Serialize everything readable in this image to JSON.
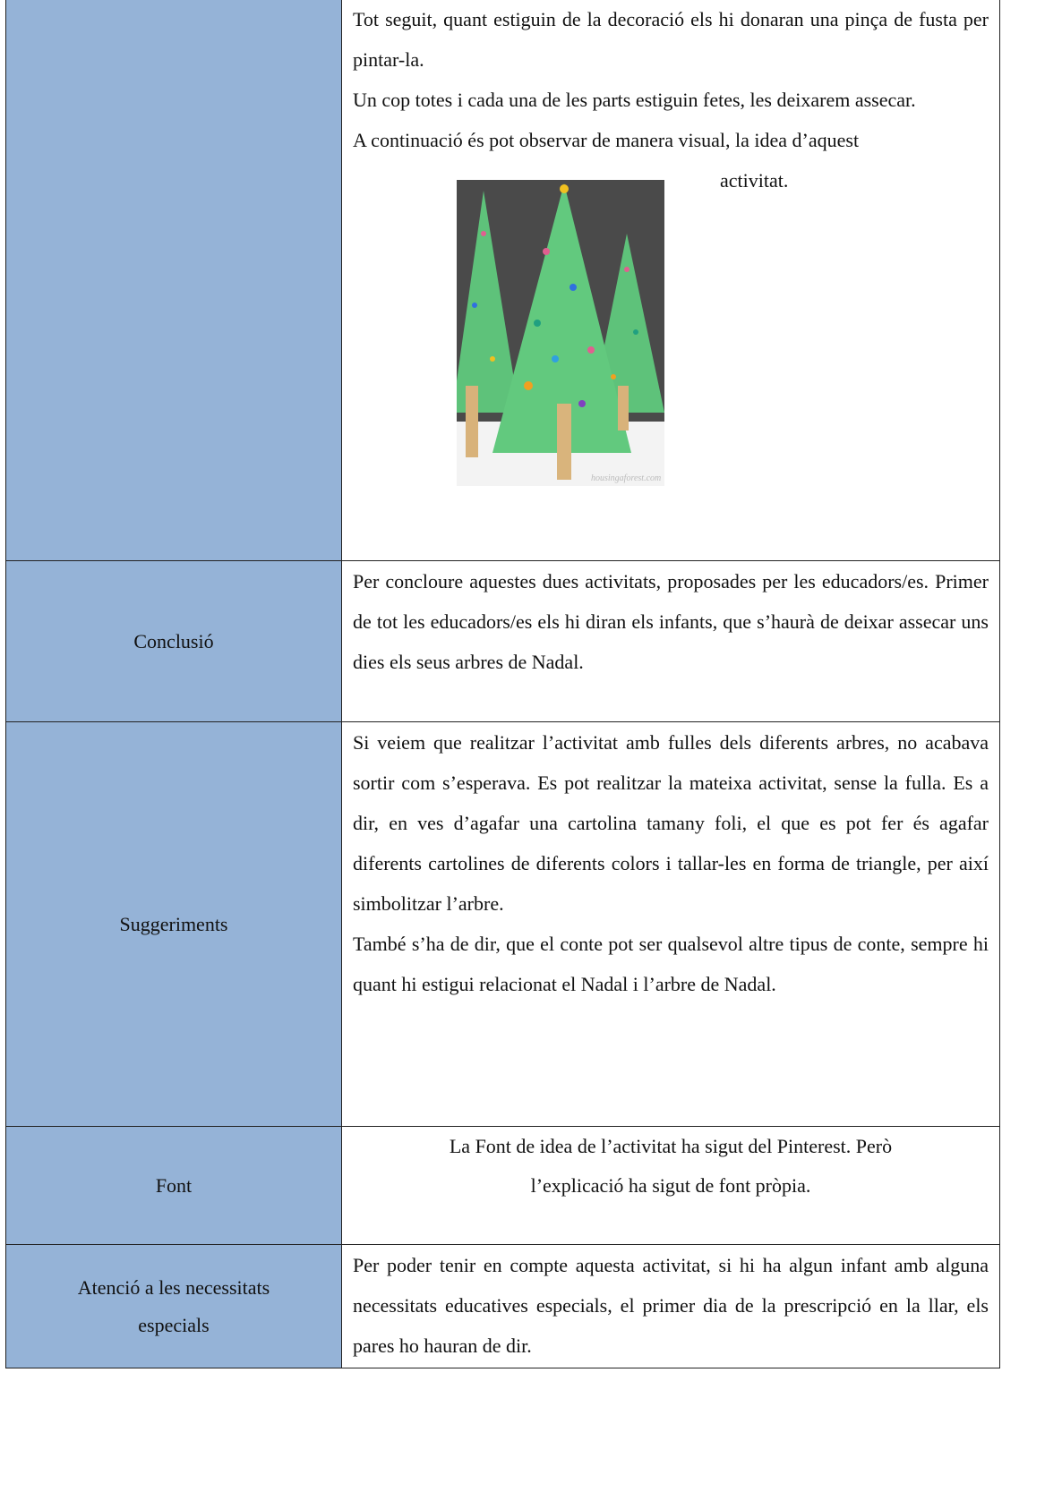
{
  "table": {
    "rows": [
      {
        "paragraphs": [
          "Tot seguit, quant estiguin de la decoració els hi donaran una pinça de fusta per pintar-la.",
          "Un cop totes i cada una de les parts estiguin fetes, les deixarem assecar."
        ],
        "text_before_image": "A continuació és pot observar de manera visual, la idea d’aquest",
        "text_after_image": "activitat.",
        "image_watermark": "housingaforest.com"
      },
      {
        "label": "Conclusió",
        "paragraphs": [
          "Per concloure aquestes dues activitats, proposades per les educadors/es. Primer de tot les educadors/es els hi diran els infants, que s’haurà de deixar assecar uns dies els seus arbres de Nadal."
        ]
      },
      {
        "label": "Suggeriments",
        "paragraphs": [
          "Si veiem que realitzar l’activitat amb fulles dels diferents arbres, no acabava sortir com s’esperava. Es pot realitzar la mateixa activitat, sense la fulla. Es a dir, en ves d’agafar una cartolina tamany foli, el que es pot fer és agafar diferents cartolines de diferents colors i tallar-les en forma de triangle, per així simbolitzar l’arbre.",
          "També s’ha de dir, que el conte pot ser qualsevol altre tipus de conte, sempre hi quant hi estigui relacionat el Nadal i l’arbre de Nadal."
        ]
      },
      {
        "label": "Font",
        "paragraphs": [
          "La Font de idea de l’activitat ha sigut del Pinterest. Però l’explicació ha sigut de font pròpia."
        ]
      },
      {
        "label": "Atenció a les necessitats especials",
        "paragraphs": [
          "Per poder tenir en compte aquesta activitat, si hi ha algun infant amb alguna necessitats educatives especials, el primer dia de la prescripció en la llar, els pares ho hauran de dir."
        ]
      }
    ]
  }
}
